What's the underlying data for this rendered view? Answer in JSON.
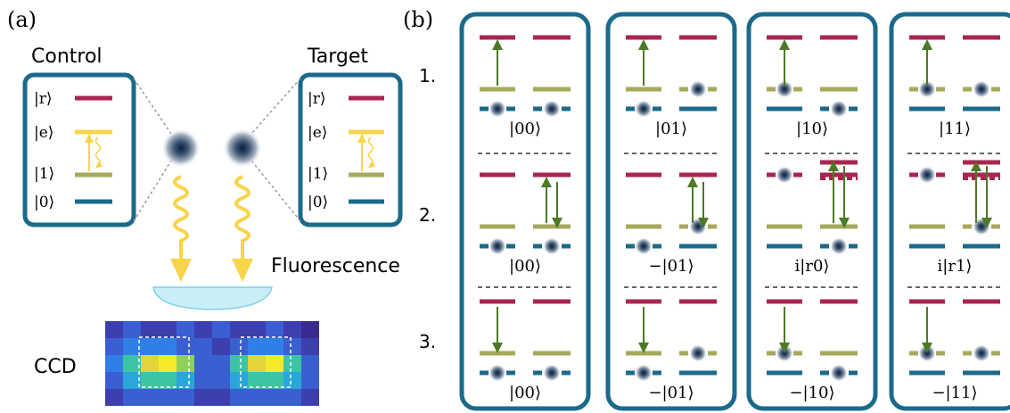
{
  "colors": {
    "box": "#1b6a8a",
    "rydberg": "#a8264f",
    "excited": "#f7d44a",
    "one": "#a7a85a",
    "zero": "#1b6a8a",
    "arrow": "#4c7a26",
    "lens": "#c9eef8",
    "dashed": "#666666"
  },
  "panel_a": {
    "label": "(a)",
    "control": {
      "title": "Control",
      "levels": [
        "|r⟩",
        "|e⟩",
        "|1⟩",
        "|0⟩"
      ]
    },
    "target": {
      "title": "Target",
      "levels": [
        "|r⟩",
        "|e⟩",
        "|1⟩",
        "|0⟩"
      ]
    },
    "fluorescence_label": "Fluorescence",
    "ccd_label": "CCD"
  },
  "panel_b": {
    "label": "(b)",
    "steps": [
      "1.",
      "2.",
      "3."
    ],
    "columns": [
      {
        "name": "00",
        "state_labels": [
          "|00⟩",
          "|00⟩",
          "|00⟩"
        ]
      },
      {
        "name": "01",
        "state_labels": [
          "|01⟩",
          "−|01⟩",
          "−|01⟩"
        ]
      },
      {
        "name": "10",
        "state_labels": [
          "|10⟩",
          "i|r0⟩",
          "−|10⟩"
        ]
      },
      {
        "name": "11",
        "state_labels": [
          "|11⟩",
          "i|r1⟩",
          "−|11⟩"
        ]
      }
    ]
  }
}
